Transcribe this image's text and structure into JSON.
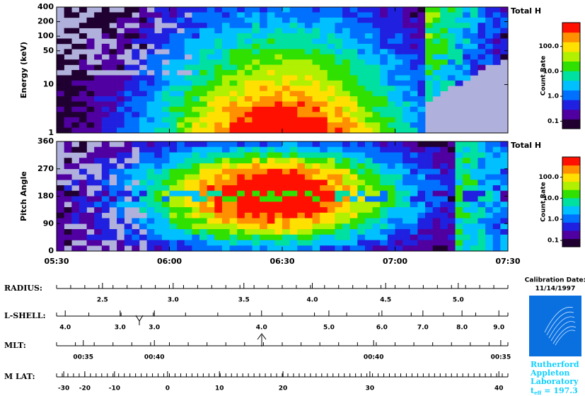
{
  "chart_data": [
    {
      "type": "heatmap",
      "ylabel": "Energy (keV)",
      "log_y": true,
      "ylim": [
        1,
        400
      ],
      "yticks": [
        1,
        10,
        50,
        100,
        200,
        400
      ],
      "colorbar": {
        "title": "Total H",
        "label": "Count Rate",
        "log": true,
        "clim": [
          0.05,
          900
        ],
        "ticks": [
          {
            "value": 0.1,
            "label": "0.1"
          },
          {
            "value": 1,
            "label": "1.0"
          },
          {
            "value": 10,
            "label": "10.0"
          },
          {
            "value": 100,
            "label": "100.0"
          }
        ],
        "colors": [
          "#200030",
          "#5000a0",
          "#2020e0",
          "#0070ff",
          "#00c0ff",
          "#00e0a0",
          "#30e000",
          "#b0f000",
          "#ffe000",
          "#ff9000",
          "#ff1000"
        ]
      }
    },
    {
      "type": "heatmap",
      "ylabel": "Pitch Angle",
      "ylim": [
        0,
        360
      ],
      "yticks": [
        0,
        90,
        180,
        270,
        360
      ],
      "xlim": [
        330,
        450
      ],
      "xticks": [
        {
          "value": 330,
          "label": "05:30"
        },
        {
          "value": 360,
          "label": "06:00"
        },
        {
          "value": 390,
          "label": "06:30"
        },
        {
          "value": 420,
          "label": "07:00"
        },
        {
          "value": 450,
          "label": "07:30"
        }
      ],
      "colorbar": {
        "title": "Total H",
        "label": "Count Rate",
        "log": true,
        "clim": [
          0.05,
          900
        ],
        "ticks": [
          {
            "value": 0.1,
            "label": "0.1"
          },
          {
            "value": 1,
            "label": "1.0"
          },
          {
            "value": 10,
            "label": "10.0"
          },
          {
            "value": 100,
            "label": "100.0"
          }
        ],
        "colors": [
          "#200030",
          "#5000a0",
          "#2020e0",
          "#0070ff",
          "#00c0ff",
          "#00e0a0",
          "#30e000",
          "#b0f000",
          "#ffe000",
          "#ff9000",
          "#ff1000"
        ]
      }
    }
  ],
  "ephemeris": {
    "rows": [
      {
        "label": "RADIUS:",
        "ticks": [
          {
            "value": 342.2,
            "label": "2.5"
          },
          {
            "value": 361.0,
            "label": "3.0"
          },
          {
            "value": 379.8,
            "label": "3.5"
          },
          {
            "value": 398.0,
            "label": "4.0"
          },
          {
            "value": 417.5,
            "label": "4.5"
          },
          {
            "value": 436.8,
            "label": "5.0"
          }
        ]
      },
      {
        "label": "L-SHELL:",
        "ticks": [
          {
            "value": 332.3,
            "label": "4.0"
          },
          {
            "value": 346.9,
            "label": "3.0"
          },
          {
            "value": 356.0,
            "label": "3.0"
          },
          {
            "value": 384.5,
            "label": "4.0"
          },
          {
            "value": 402.4,
            "label": "5.0"
          },
          {
            "value": 416.5,
            "label": "6.0"
          },
          {
            "value": 427.4,
            "label": "7.0"
          },
          {
            "value": 437.8,
            "label": "8.0"
          },
          {
            "value": 447.6,
            "label": "9.0"
          }
        ]
      },
      {
        "label": "MLT:",
        "ticks": [
          {
            "value": 337.1,
            "label": "00:35"
          },
          {
            "value": 356.0,
            "label": "00:40"
          },
          {
            "value": 414.3,
            "label": "00:40"
          },
          {
            "value": 448.1,
            "label": "00:35"
          }
        ]
      },
      {
        "label": "M LAT:",
        "ticks": [
          {
            "value": 331.9,
            "label": "-30"
          },
          {
            "value": 337.5,
            "label": "-20"
          },
          {
            "value": 345.4,
            "label": "-10"
          },
          {
            "value": 359.5,
            "label": "0"
          },
          {
            "value": 373.3,
            "label": "10"
          },
          {
            "value": 390.2,
            "label": "20"
          },
          {
            "value": 413.3,
            "label": "30"
          },
          {
            "value": 447.6,
            "label": "40"
          }
        ]
      }
    ]
  },
  "calibration": {
    "title": "Calibration Date:",
    "date": "11/14/1997"
  },
  "logo": {
    "lines": [
      "Rutherford",
      "Appleton",
      "Laboratory"
    ],
    "teff": {
      "t": "t",
      "sub": "eff",
      "rest": "= 197.3"
    }
  }
}
